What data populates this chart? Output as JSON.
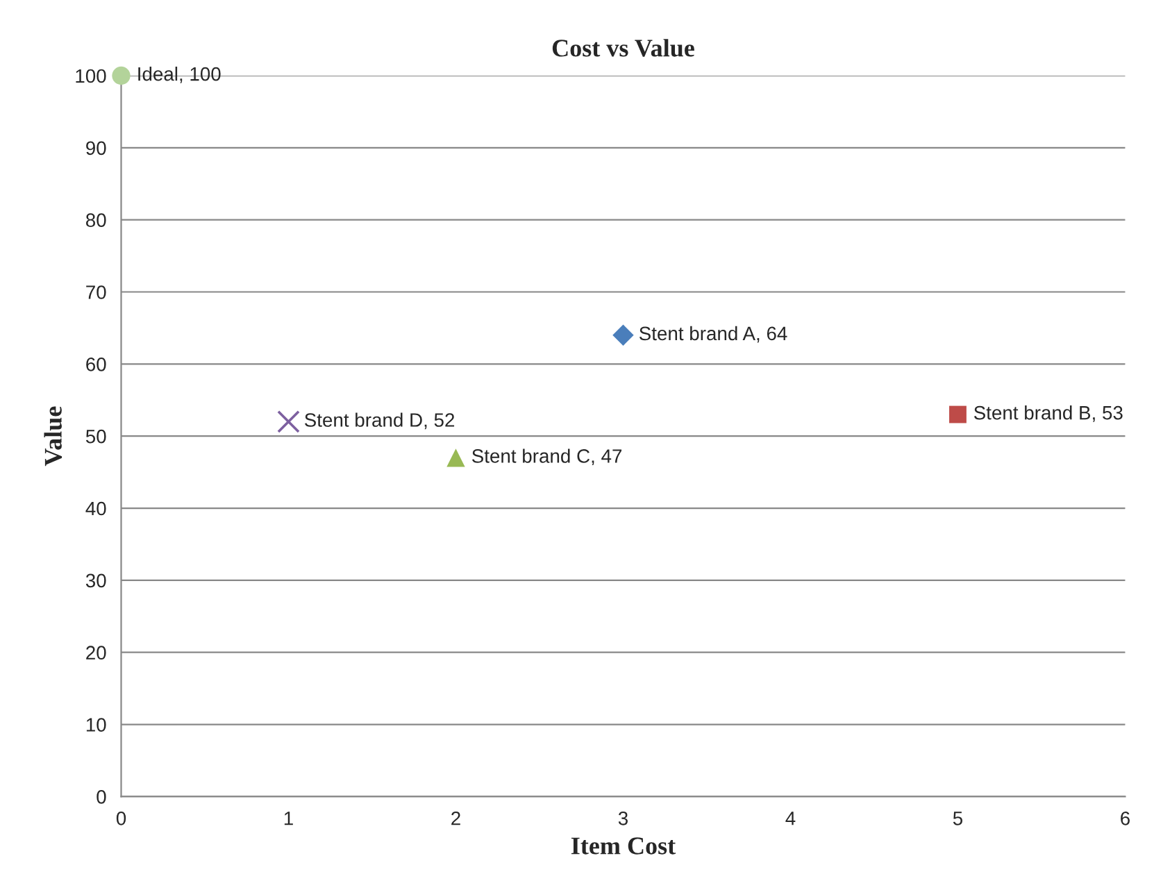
{
  "chart_data": {
    "type": "scatter",
    "title": "Cost vs Value",
    "xlabel": "Item Cost",
    "ylabel": "Value",
    "xlim": [
      0,
      6
    ],
    "xticks": [
      0,
      1,
      2,
      3,
      4,
      5,
      6
    ],
    "ylim": [
      0,
      100
    ],
    "yticks": [
      0,
      10,
      20,
      30,
      40,
      50,
      60,
      70,
      80,
      90,
      100
    ],
    "grid": "y",
    "legend": false,
    "series": [
      {
        "color": "#b3d39a",
        "marker": "circle",
        "x": [
          0
        ],
        "values": [
          100
        ],
        "value_labels": [
          "Ideal, 100"
        ]
      },
      {
        "color": "#4a7ebb",
        "marker": "diamond",
        "x": [
          3
        ],
        "values": [
          64
        ],
        "value_labels": [
          "Stent brand A, 64"
        ]
      },
      {
        "color": "#be4b48",
        "marker": "square",
        "x": [
          5
        ],
        "values": [
          53
        ],
        "value_labels": [
          "Stent brand B, 53"
        ]
      },
      {
        "color": "#98b954",
        "marker": "triangle",
        "x": [
          2
        ],
        "values": [
          47
        ],
        "value_labels": [
          "Stent brand C, 47"
        ]
      },
      {
        "color": "#7d60a0",
        "marker": "cross",
        "x": [
          1
        ],
        "values": [
          52
        ],
        "value_labels": [
          "Stent brand D, 52"
        ]
      }
    ]
  }
}
